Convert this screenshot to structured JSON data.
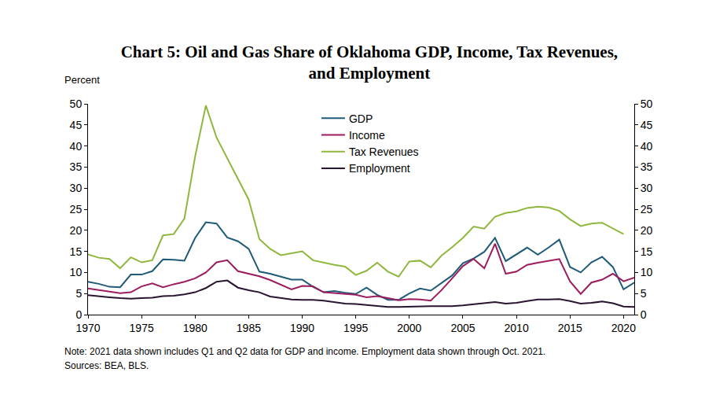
{
  "chart_data": {
    "type": "line",
    "title": "Chart 5: Oil and Gas Share of Oklahoma GDP, Income, Tax Revenues, and Employment",
    "ylabel": "Percent",
    "note": "Note: 2021 data shown includes Q1 and Q2 data for GDP and income. Employment data shown through Oct. 2021.",
    "source": "Sources: BEA, BLS.",
    "x": [
      1970,
      1971,
      1972,
      1973,
      1974,
      1975,
      1976,
      1977,
      1978,
      1979,
      1980,
      1981,
      1982,
      1983,
      1984,
      1985,
      1986,
      1987,
      1988,
      1989,
      1990,
      1991,
      1992,
      1993,
      1994,
      1995,
      1996,
      1997,
      1998,
      1999,
      2000,
      2001,
      2002,
      2003,
      2004,
      2005,
      2006,
      2007,
      2008,
      2009,
      2010,
      2011,
      2012,
      2013,
      2014,
      2015,
      2016,
      2017,
      2018,
      2019,
      2020,
      2021
    ],
    "series": [
      {
        "name": "GDP",
        "color": "#1e5b78",
        "values": [
          7.8,
          7.3,
          6.6,
          6.5,
          9.5,
          9.5,
          10.3,
          13.1,
          13.0,
          12.8,
          18.2,
          21.9,
          21.6,
          18.3,
          17.4,
          15.6,
          10.2,
          9.7,
          9.0,
          8.3,
          8.3,
          6.6,
          5.3,
          5.6,
          5.2,
          4.9,
          6.4,
          4.7,
          3.5,
          3.5,
          5.0,
          6.2,
          5.7,
          7.5,
          9.3,
          12.2,
          13.3,
          14.9,
          18.2,
          12.7,
          14.3,
          15.9,
          14.2,
          15.9,
          17.8,
          11.3,
          10.0,
          12.4,
          13.7,
          11.3,
          6.0,
          7.6
        ]
      },
      {
        "name": "Income",
        "color": "#9b1d5e",
        "values": [
          6.2,
          5.8,
          5.5,
          5.1,
          5.3,
          6.7,
          7.4,
          6.5,
          7.2,
          7.8,
          8.6,
          10.0,
          12.4,
          12.9,
          10.3,
          9.7,
          9.1,
          8.2,
          7.1,
          6.0,
          6.8,
          6.7,
          5.3,
          5.1,
          4.9,
          4.7,
          4.1,
          4.4,
          3.9,
          3.4,
          3.7,
          3.6,
          3.3,
          5.8,
          8.6,
          11.5,
          13.2,
          11.0,
          16.8,
          9.7,
          10.2,
          11.8,
          12.3,
          12.7,
          13.2,
          7.9,
          4.9,
          7.6,
          8.3,
          9.7,
          7.9,
          8.8
        ]
      },
      {
        "name": "Tax Revenues",
        "color": "#8fb73e",
        "values": [
          14.3,
          13.5,
          13.2,
          11.0,
          13.6,
          12.4,
          12.9,
          18.8,
          19.1,
          22.8,
          37.5,
          49.6,
          42.0,
          37.0,
          32.0,
          27.3,
          17.9,
          15.6,
          14.1,
          14.5,
          15.0,
          12.9,
          12.3,
          11.8,
          11.4,
          9.4,
          10.4,
          12.3,
          10.2,
          9.0,
          12.6,
          12.8,
          11.2,
          14.0,
          16.0,
          18.2,
          20.9,
          20.4,
          23.2,
          24.1,
          24.5,
          25.3,
          25.6,
          25.4,
          24.6,
          22.6,
          21.0,
          21.6,
          21.8,
          20.5,
          19.1,
          null
        ]
      },
      {
        "name": "Employment",
        "color": "#2a1530",
        "values": [
          4.6,
          4.3,
          4.1,
          3.9,
          3.8,
          3.9,
          4.0,
          4.4,
          4.5,
          4.8,
          5.3,
          6.3,
          7.8,
          8.1,
          6.4,
          5.8,
          5.3,
          4.3,
          4.0,
          3.6,
          3.5,
          3.5,
          3.3,
          2.9,
          2.6,
          2.5,
          2.3,
          2.1,
          1.8,
          1.8,
          1.9,
          1.9,
          2.0,
          2.0,
          2.0,
          2.2,
          2.5,
          2.8,
          3.0,
          2.6,
          2.8,
          3.2,
          3.6,
          3.6,
          3.7,
          3.2,
          2.6,
          2.8,
          3.1,
          2.7,
          1.9,
          1.8
        ]
      }
    ],
    "xlim": [
      1970,
      2021
    ],
    "xticks": [
      1970,
      1975,
      1980,
      1985,
      1990,
      1995,
      2000,
      2005,
      2010,
      2015,
      2020
    ],
    "ylim": [
      0,
      50
    ],
    "yticks": [
      0,
      5,
      10,
      15,
      20,
      25,
      30,
      35,
      40,
      45,
      50
    ],
    "y2lim": [
      0,
      50
    ],
    "y2ticks": [
      0,
      5,
      10,
      15,
      20,
      25,
      30,
      35,
      40,
      45,
      50
    ],
    "grid": false,
    "legend": "top"
  }
}
